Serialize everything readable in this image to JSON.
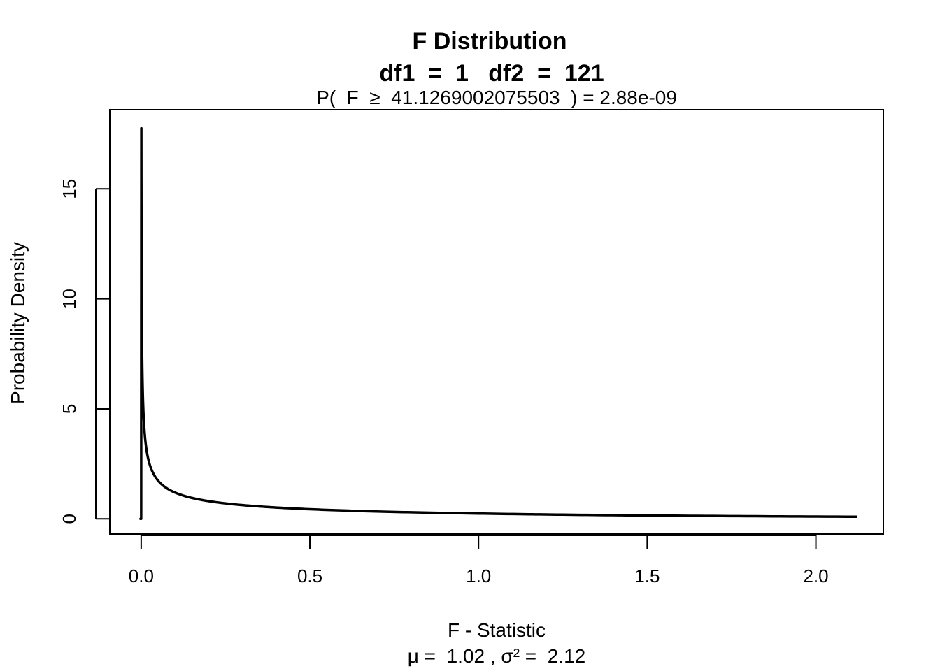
{
  "chart_data": {
    "type": "line",
    "title_line1": "F Distribution",
    "title_line2": "df1  =  1   df2  =  121",
    "subtitle": "P(  F  ≥  41.1269002075503  ) = 2.88e-09",
    "xlabel": "F - Statistic",
    "xlabel_sub": "μ =  1.02 , σ² =  2.12",
    "ylabel": "Probability Density",
    "xlim": [
      -0.093,
      2.2
    ],
    "ylim": [
      -0.69,
      18.6
    ],
    "x_ticks": [
      {
        "value": 0.0,
        "label": "0.0"
      },
      {
        "value": 0.5,
        "label": "0.5"
      },
      {
        "value": 1.0,
        "label": "1.0"
      },
      {
        "value": 1.5,
        "label": "1.5"
      },
      {
        "value": 2.0,
        "label": "2.0"
      }
    ],
    "y_ticks": [
      {
        "value": 0,
        "label": "0"
      },
      {
        "value": 5,
        "label": "5"
      },
      {
        "value": 10,
        "label": "10"
      },
      {
        "value": 15,
        "label": "15"
      }
    ],
    "df1": 1,
    "df2": 121,
    "x_range": [
      0,
      2.12
    ],
    "y_peak": 17.8,
    "series": [
      {
        "color": "#000000",
        "description": "F density with df1 = 1, df2 = 121"
      }
    ]
  }
}
